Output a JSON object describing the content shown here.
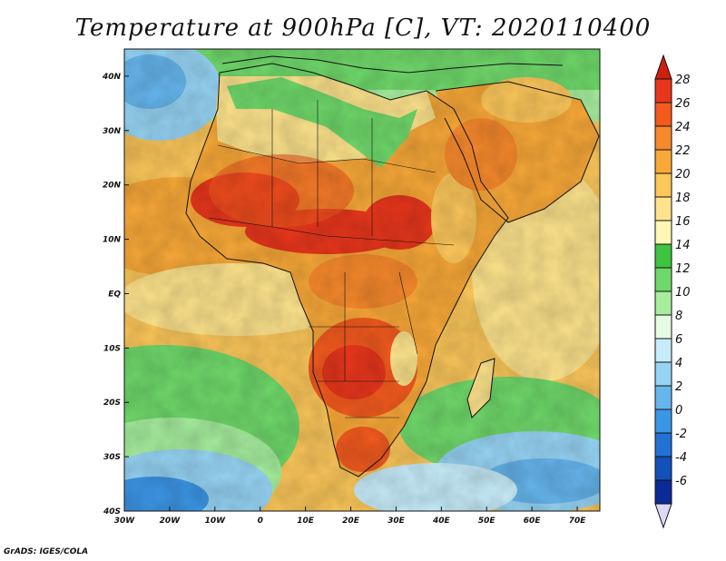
{
  "title": "Temperature at 900hPa [C], VT: 2020110400",
  "credit": "GrADS: IGES/COLA",
  "map": {
    "lon_range": [
      -30,
      75
    ],
    "lat_range": [
      -40,
      45
    ],
    "lon_ticks": [
      "30W",
      "20W",
      "10W",
      "0",
      "10E",
      "20E",
      "30E",
      "40E",
      "50E",
      "60E",
      "70E"
    ],
    "lat_ticks": [
      "40N",
      "30N",
      "20N",
      "10N",
      "EQ",
      "10S",
      "20S",
      "30S",
      "40S"
    ]
  },
  "colorbar": {
    "labels": [
      "28",
      "26",
      "24",
      "22",
      "20",
      "18",
      "16",
      "14",
      "12",
      "10",
      "8",
      "6",
      "4",
      "2",
      "0",
      "-2",
      "-4",
      "-6"
    ],
    "colors": [
      "#e8361c",
      "#f25a1e",
      "#f6892c",
      "#f8a838",
      "#fbc65a",
      "#fde38c",
      "#fff7b4",
      "#3ec43e",
      "#6fd86a",
      "#a6ee9e",
      "#e6fbe4",
      "#c6ecf9",
      "#96d4f4",
      "#66b6ee",
      "#3c96e6",
      "#2272d6",
      "#1250ba",
      "#0a2a96"
    ],
    "top_color": "#cc2010",
    "bottom_color": "#ddd8f6"
  }
}
